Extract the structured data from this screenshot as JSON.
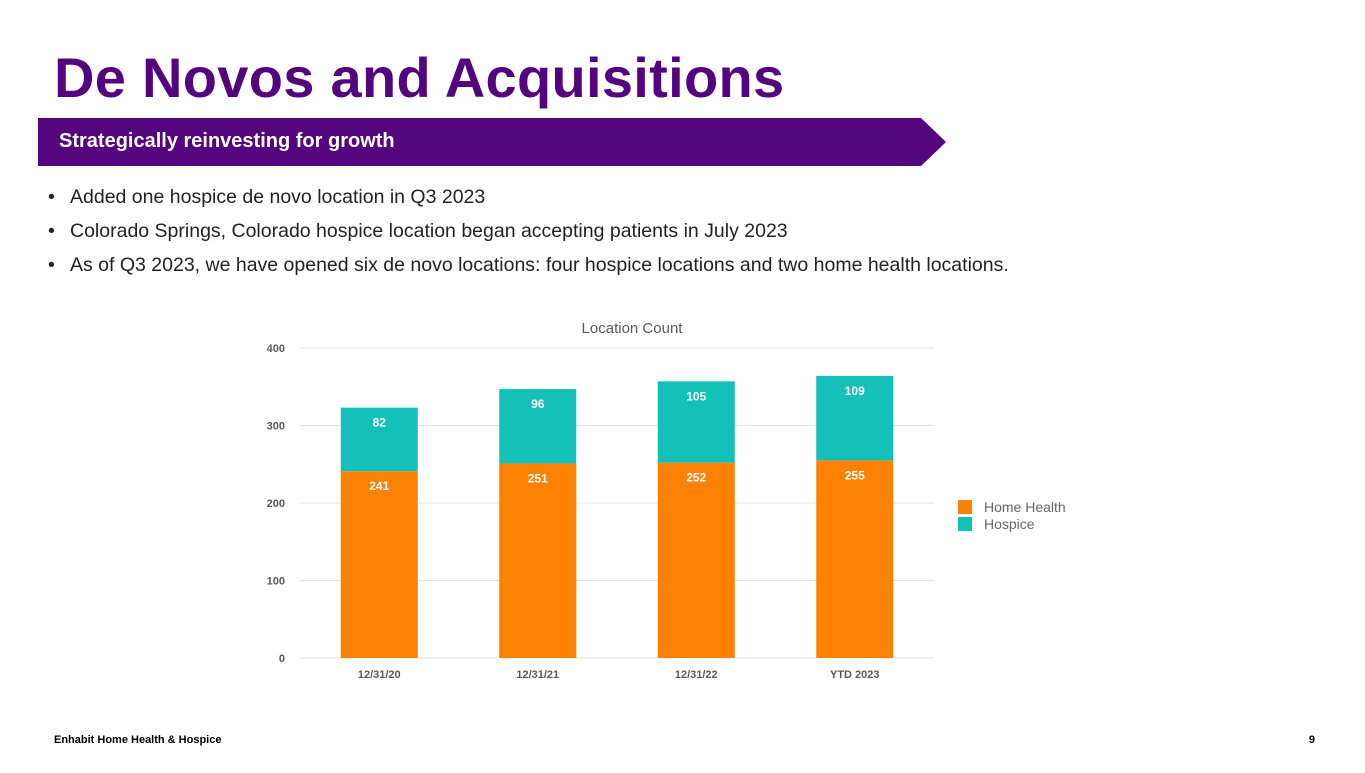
{
  "slide": {
    "title": "De Novos and Acquisitions",
    "banner": "Strategically reinvesting for growth",
    "bullets": [
      "Added one hospice de novo location in Q3 2023",
      "Colorado Springs, Colorado hospice location began accepting patients in July 2023",
      "As of Q3 2023, we have opened six de novo locations: four hospice locations and two home health locations."
    ],
    "footer_left": "Enhabit Home Health & Hospice",
    "page_number": "9"
  },
  "colors": {
    "brand_purple": "#54057e",
    "home_health": "#fd8103",
    "hospice": "#13c1b8"
  },
  "chart_data": {
    "type": "bar",
    "stacked": true,
    "title": "Location Count",
    "categories": [
      "12/31/20",
      "12/31/21",
      "12/31/22",
      "YTD 2023"
    ],
    "series": [
      {
        "name": "Home Health",
        "values": [
          241,
          251,
          252,
          255
        ],
        "color": "#fd8103"
      },
      {
        "name": "Hospice",
        "values": [
          82,
          96,
          105,
          109
        ],
        "color": "#13c1b8"
      }
    ],
    "ylim": [
      0,
      400
    ],
    "yticks": [
      0,
      100,
      200,
      300,
      400
    ],
    "grid": true,
    "legend": "right",
    "xlabel": "",
    "ylabel": ""
  }
}
